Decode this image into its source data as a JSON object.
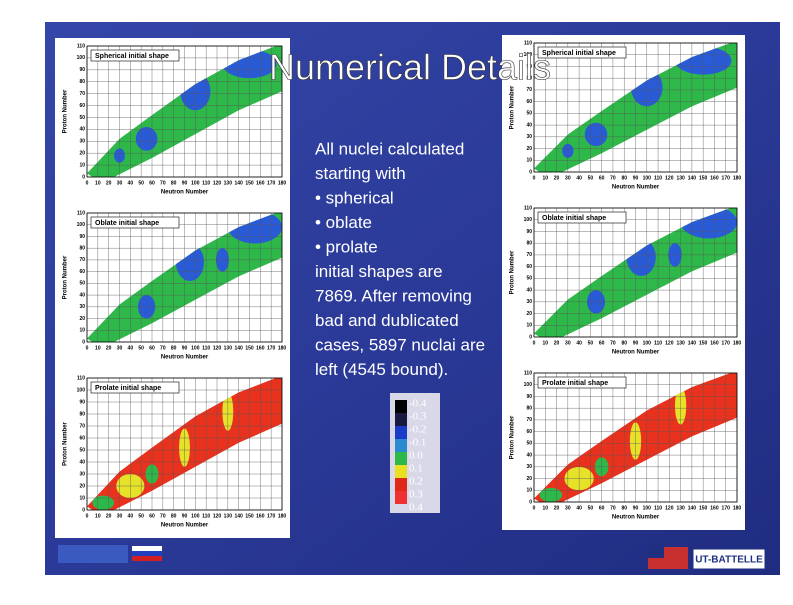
{
  "title": "Numerical Details",
  "body": {
    "lines": [
      "All nuclei calculated",
      "starting with",
      "• spherical",
      "• oblate",
      "• prolate",
      "initial shapes are",
      "7869. After removing",
      "bad and dublicated",
      "cases, 5897 nuclai are",
      "left (4545 bound)."
    ]
  },
  "axes": {
    "x_label": "Neutron Number",
    "y_label": "Proton Number",
    "x_ticks": [
      0,
      10,
      20,
      30,
      40,
      50,
      60,
      70,
      80,
      90,
      100,
      110,
      120,
      130,
      140,
      150,
      160,
      170,
      180
    ],
    "y_ticks": [
      0,
      10,
      20,
      30,
      40,
      50,
      60,
      70,
      80,
      90,
      100,
      110
    ]
  },
  "plots": [
    {
      "title": "Spherical initial shape",
      "shape": "spherical"
    },
    {
      "title": "Oblate initial shape",
      "shape": "oblate"
    },
    {
      "title": "Prolate initial shape",
      "shape": "prolate"
    },
    {
      "title": "Spherical initial shape",
      "shape": "spherical"
    },
    {
      "title": "Oblate initial shape",
      "shape": "oblate"
    },
    {
      "title": "Prolate initial shape",
      "shape": "prolate"
    }
  ],
  "colorbar": {
    "labels": [
      "-0.4",
      "-0.3",
      "-0.2",
      "-0.1",
      "0.0",
      "0.1",
      "0.2",
      "0.3",
      "0.4"
    ]
  },
  "logo": "UT-BATTELLE"
}
